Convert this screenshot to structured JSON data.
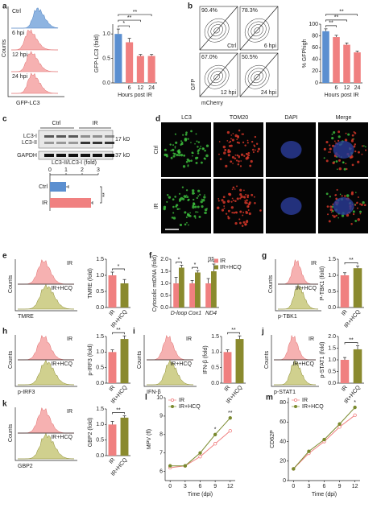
{
  "panel_letters": [
    "a",
    "b",
    "c",
    "d",
    "e",
    "f",
    "g",
    "h",
    "i",
    "j",
    "k",
    "l",
    "m"
  ],
  "hist_a": {
    "labels": [
      "Ctrl",
      "6 hpi",
      "12 hpi",
      "24 hpi"
    ],
    "ylabel": "Counts",
    "xlabel": "GFP-LC3"
  },
  "flow_b": {
    "percents": [
      "90.4%",
      "78.3%",
      "67.0%",
      "50.5%"
    ],
    "labels": [
      "Ctrl",
      "6 hpi",
      "12 hpi",
      "24 hpi"
    ],
    "ylabel": "GFP",
    "xlabel": "mCherry"
  },
  "blot_c": {
    "groups": [
      "Ctrl",
      "IR"
    ],
    "bands": [
      "LC3-I",
      "LC3-II",
      "GAPDH"
    ],
    "sizes": [
      "17 kD",
      "37 kD"
    ]
  },
  "images_d": {
    "channels": [
      "LC3",
      "TOM20",
      "DAPI",
      "Merge"
    ],
    "rows": [
      "Ctrl",
      "IR"
    ]
  },
  "histograms": [
    {
      "top": "IR",
      "bottom": "IR+HCQ",
      "ylabel": "Counts",
      "xlabel": "TMRE"
    },
    {
      "top": "IR",
      "bottom": "IR+HCQ",
      "ylabel": "Counts",
      "xlabel": "p-TBK1"
    },
    {
      "top": "IR",
      "bottom": "IR+HCQ",
      "ylabel": "Counts",
      "xlabel": "p-IRF3"
    },
    {
      "top": "IR",
      "bottom": "IR+HCQ",
      "ylabel": "Counts",
      "xlabel": "IFN-β"
    },
    {
      "top": "IR",
      "bottom": "IR+HCQ",
      "ylabel": "Counts",
      "xlabel": "p-STAT1"
    },
    {
      "top": "IR",
      "bottom": "IR+HCQ",
      "ylabel": "Counts",
      "xlabel": "GBP2"
    }
  ],
  "chart_data": [
    {
      "type": "bar",
      "ylabel": "GFP-LC3 (fold)",
      "xlabel": "Hours post IR",
      "categories": [
        null,
        "6",
        "12",
        "24"
      ],
      "values": [
        1.0,
        0.83,
        0.55,
        0.55
      ],
      "errors": [
        0.1,
        0.08,
        0.03,
        0.03
      ],
      "colors": [
        "#5b8fd0",
        "#f08080",
        "#f08080",
        "#f08080"
      ],
      "ylim": [
        0,
        1.2
      ],
      "yticks": [
        {
          "value": 0,
          "label": "0.0"
        },
        {
          "value": 0.5,
          "label": "0.5"
        },
        {
          "value": 1,
          "label": "1.0"
        }
      ],
      "annotations": [
        "*",
        "**",
        "**"
      ]
    },
    {
      "type": "bar",
      "ylabel": "% GFPhigh",
      "xlabel": "Hours post IR",
      "categories": [
        null,
        "6",
        "12",
        "24"
      ],
      "values": [
        88,
        78,
        65,
        52
      ],
      "errors": [
        4,
        3,
        3,
        2
      ],
      "colors": [
        "#5b8fd0",
        "#f08080",
        "#f08080",
        "#f08080"
      ],
      "ylim": [
        0,
        100
      ],
      "yticks": [
        0,
        20,
        40,
        60,
        80,
        100
      ],
      "annotations": [
        "**",
        "**",
        "**"
      ]
    },
    {
      "type": "hbar",
      "title": "LC3-II/LC3-I (fold)",
      "categories": [
        "Ctrl",
        "IR"
      ],
      "values": [
        1.0,
        2.55
      ],
      "errors": [
        0.15,
        0.1
      ],
      "colors": [
        "#5b8fd0",
        "#f08080"
      ],
      "xlim": [
        0,
        3
      ],
      "xticks": [
        0,
        1,
        2,
        3
      ],
      "annotations": [
        "**"
      ]
    },
    {
      "type": "bar",
      "ylabel": "TMRE (fold)",
      "categories": [
        "IR",
        "IR+HCQ"
      ],
      "values": [
        1.0,
        0.75
      ],
      "errors": [
        0.1,
        0.12
      ],
      "colors": [
        "#f08080",
        "#8a8a2e"
      ],
      "ylim": [
        0,
        1.5
      ],
      "yticks": [
        {
          "value": 0,
          "label": "0.0"
        },
        {
          "value": 0.5,
          "label": "0.5"
        },
        {
          "value": 1,
          "label": "1.0"
        },
        {
          "value": 1.5,
          "label": "1.5"
        }
      ],
      "annotations": [
        "*"
      ]
    },
    {
      "type": "grouped-bar",
      "ylabel": "Cytosolic mtDNA (fold)",
      "categories": [
        "D-loop",
        "Cox1",
        "ND4"
      ],
      "series": [
        {
          "name": "IR",
          "color": "#f08080",
          "values": [
            1,
            1,
            1
          ],
          "errors": [
            0.25,
            0.12,
            0.2
          ]
        },
        {
          "name": "IR+HCQ",
          "color": "#8a8a2e",
          "values": [
            1.65,
            1.45,
            1.5
          ],
          "errors": [
            0.1,
            0.08,
            0.3
          ]
        }
      ],
      "ylim": [
        0,
        2
      ],
      "yticks": [
        {
          "value": 0,
          "label": "0.0"
        },
        {
          "value": 0.5,
          "label": "0.5"
        },
        {
          "value": 1,
          "label": "1.0"
        },
        {
          "value": 1.5,
          "label": "1.5"
        },
        {
          "value": 2,
          "label": "2.0"
        }
      ],
      "annotations": [
        "*",
        "*",
        "ns"
      ]
    },
    {
      "type": "bar",
      "ylabel": "P-TBK1 (fold)",
      "categories": [
        "IR",
        "IR+HCQ"
      ],
      "values": [
        1.0,
        1.22
      ],
      "errors": [
        0.08,
        0.07
      ],
      "colors": [
        "#f08080",
        "#8a8a2e"
      ],
      "ylim": [
        0,
        1.5
      ],
      "yticks": [
        {
          "value": 0,
          "label": "0.0"
        },
        {
          "value": 0.5,
          "label": "0.5"
        },
        {
          "value": 1,
          "label": "1.0"
        },
        {
          "value": 1.5,
          "label": "1.5"
        }
      ],
      "annotations": [
        "**"
      ]
    },
    {
      "type": "bar",
      "ylabel": "p-IRF3 (fold)",
      "categories": [
        "IR",
        "IR+HCQ"
      ],
      "values": [
        1.0,
        1.42
      ],
      "errors": [
        0.07,
        0.1
      ],
      "colors": [
        "#f08080",
        "#8a8a2e"
      ],
      "ylim": [
        0,
        1.5
      ],
      "yticks": [
        {
          "value": 0,
          "label": "0.0"
        },
        {
          "value": 0.5,
          "label": "0.5"
        },
        {
          "value": 1,
          "label": "1.0"
        },
        {
          "value": 1.5,
          "label": "1.5"
        }
      ],
      "annotations": [
        "**"
      ]
    },
    {
      "type": "bar",
      "ylabel": "IFN-β (fold)",
      "categories": [
        "IR",
        "IR+HCQ"
      ],
      "values": [
        1.0,
        1.42
      ],
      "errors": [
        0.07,
        0.1
      ],
      "colors": [
        "#f08080",
        "#8a8a2e"
      ],
      "ylim": [
        0,
        1.5
      ],
      "yticks": [
        {
          "value": 0,
          "label": "0.0"
        },
        {
          "value": 0.5,
          "label": "0.5"
        },
        {
          "value": 1,
          "label": "1.0"
        },
        {
          "value": 1.5,
          "label": "1.5"
        }
      ],
      "annotations": [
        "**"
      ]
    },
    {
      "type": "bar",
      "ylabel": "p-STAT1 (fold)",
      "categories": [
        "IR",
        "IR+HCQ"
      ],
      "values": [
        1.0,
        1.45
      ],
      "errors": [
        0.1,
        0.15
      ],
      "colors": [
        "#f08080",
        "#8a8a2e"
      ],
      "ylim": [
        0,
        2
      ],
      "yticks": [
        {
          "value": 0,
          "label": "0.0"
        },
        {
          "value": 0.5,
          "label": "0.5"
        },
        {
          "value": 1,
          "label": "1.0"
        },
        {
          "value": 1.5,
          "label": "1.5"
        },
        {
          "value": 2,
          "label": "2.0"
        }
      ],
      "annotations": [
        "**"
      ]
    },
    {
      "type": "bar",
      "ylabel": "GBP2 (fold)",
      "categories": [
        "IR",
        "IR+HCQ"
      ],
      "values": [
        1.0,
        1.22
      ],
      "errors": [
        0.1,
        0.06
      ],
      "colors": [
        "#f08080",
        "#8a8a2e"
      ],
      "ylim": [
        0,
        1.5
      ],
      "yticks": [
        {
          "value": 0,
          "label": "0.0"
        },
        {
          "value": 0.5,
          "label": "0.5"
        },
        {
          "value": 1,
          "label": "1.0"
        },
        {
          "value": 1.5,
          "label": "1.5"
        }
      ],
      "annotations": [
        "**"
      ]
    },
    {
      "type": "line",
      "ylabel": "MPV (fl)",
      "xlabel": "Time (dpi)",
      "x": [
        0,
        3,
        6,
        9,
        12
      ],
      "xlim": [
        -1,
        13
      ],
      "xticks": [
        0,
        3,
        6,
        9,
        12
      ],
      "ylim": [
        5.5,
        10
      ],
      "yticks": [
        6,
        7,
        8,
        9,
        10
      ],
      "series": [
        {
          "name": "IR",
          "color": "#f08080",
          "values": [
            6.2,
            6.3,
            6.8,
            7.5,
            8.2
          ]
        },
        {
          "name": "IR+HCQ",
          "color": "#7a8a2e",
          "values": [
            6.3,
            6.3,
            7.0,
            8.0,
            8.9
          ]
        }
      ],
      "annotations": [
        "*",
        "**"
      ]
    },
    {
      "type": "line",
      "ylabel": "CD62P",
      "xlabel": "Time (dpi)",
      "x": [
        0,
        3,
        6,
        9,
        12
      ],
      "xlim": [
        -1,
        13
      ],
      "xticks": [
        0,
        3,
        6,
        9,
        12
      ],
      "ylim": [
        0,
        85
      ],
      "yticks": [
        0,
        20,
        40,
        60,
        80
      ],
      "series": [
        {
          "name": "IR",
          "color": "#f08080",
          "values": [
            12,
            28,
            40,
            55,
            67
          ]
        },
        {
          "name": "IR+HCQ",
          "color": "#7a8a2e",
          "values": [
            12,
            30,
            42,
            58,
            75
          ]
        }
      ],
      "annotations": [
        "*"
      ]
    }
  ]
}
